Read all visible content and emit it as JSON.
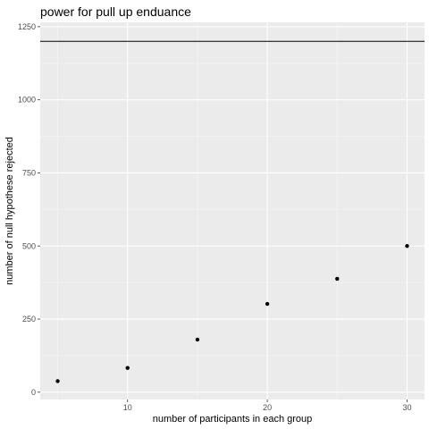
{
  "chart_data": {
    "type": "scatter",
    "title": "power for pull up enduance",
    "xlabel": "number of participants in each group",
    "ylabel": "number of null hypothese rejected",
    "x": [
      5,
      10,
      15,
      20,
      25,
      30
    ],
    "y": [
      38,
      83,
      180,
      302,
      388,
      500
    ],
    "xlim": [
      3.75,
      31.25
    ],
    "ylim": [
      -25,
      1265
    ],
    "xticks": [
      10,
      20,
      30
    ],
    "yticks": [
      0,
      250,
      500,
      750,
      1000,
      1250
    ],
    "xtick_labels": [
      "10",
      "20",
      "30"
    ],
    "ytick_labels": [
      "0",
      "250",
      "500",
      "750",
      "1000",
      "1250"
    ],
    "hline": 1200,
    "grid": true,
    "legend": "none"
  },
  "colors": {
    "panel_background": "#ebebeb",
    "grid_major": "#ffffff",
    "grid_minor": "#f5f5f5",
    "points": "#000000",
    "reference_line": "#000000",
    "tick_text": "#4d4d4d"
  }
}
